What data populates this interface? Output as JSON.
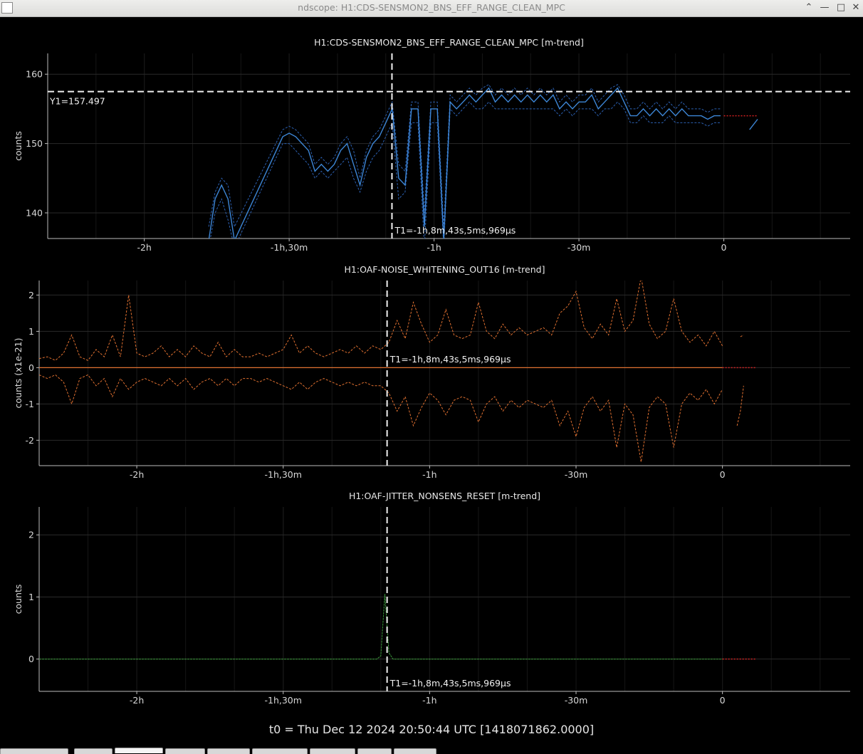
{
  "window": {
    "title": "ndscope: H1:CDS-SENSMON2_BNS_EFF_RANGE_CLEAN_MPC",
    "controls": [
      "chevron-up-icon",
      "minimize-icon",
      "maximize-icon",
      "close-icon"
    ]
  },
  "x_axis": {
    "tick_labels": [
      "-2h",
      "-1h,30m",
      "-1h",
      "-30m",
      "0"
    ],
    "tick_values_s": [
      -7200,
      -5400,
      -3600,
      -1800,
      0
    ],
    "range_s": [
      -8400,
      1570
    ]
  },
  "cursors": {
    "t1_label": "T1=-1h,8m,43s,5ms,969µs",
    "t1_value_s": -4123.006,
    "y1_label": "Y1=157.497",
    "y1_value": 157.497
  },
  "t0_label": "t0 = Thu Dec 12 2024 20:50:44 UTC [1418071862.0000]",
  "chart_data": [
    {
      "type": "line",
      "title": "H1:CDS-SENSMON2_BNS_EFF_RANGE_CLEAN_MPC [m-trend]",
      "ylabel": "counts",
      "ylim": [
        136.3,
        163.0
      ],
      "yticks": [
        140,
        150,
        160
      ],
      "grid": true,
      "color": "#3d86d6",
      "x": [
        -6400,
        -6320,
        -6240,
        -6160,
        -6080,
        -5480,
        -5400,
        -5320,
        -5240,
        -5160,
        -5080,
        -5000,
        -4920,
        -4840,
        -4760,
        -4680,
        -4600,
        -4520,
        -4440,
        -4360,
        -4280,
        -4200,
        -4120,
        -4040,
        -3960,
        -3880,
        -3800,
        -3720,
        -3640,
        -3560,
        -3480,
        -3400,
        -3320,
        -3240,
        -3160,
        -3080,
        -3000,
        -2920,
        -2840,
        -2760,
        -2680,
        -2600,
        -2520,
        -2440,
        -2360,
        -2280,
        -2200,
        -2120,
        -2040,
        -1960,
        -1880,
        -1800,
        -1720,
        -1640,
        -1560,
        -1480,
        -1400,
        -1320,
        -1240,
        -1160,
        -1080,
        -1000,
        -920,
        -840,
        -760,
        -680,
        -600,
        -520,
        -440,
        -360,
        -280,
        -200,
        -120,
        -40
      ],
      "y": [
        136,
        142,
        144,
        142,
        136,
        151,
        151.5,
        151,
        150,
        149,
        146,
        147,
        146,
        147,
        149,
        150,
        147,
        144,
        148,
        150,
        151,
        153,
        155,
        145,
        144,
        155,
        155,
        138,
        155,
        155,
        136,
        156,
        155,
        156,
        157,
        156,
        157,
        158,
        156,
        157,
        156,
        157,
        156,
        157,
        156,
        157,
        156,
        157,
        155,
        156,
        155,
        156,
        156,
        157,
        155,
        156,
        157,
        158,
        156,
        154,
        154,
        155,
        154,
        155,
        154,
        155,
        154,
        155,
        154,
        154,
        154,
        153.5,
        154,
        154
      ],
      "min": [
        135,
        140,
        142,
        139,
        135,
        150,
        150,
        149,
        148,
        147,
        145,
        146,
        145,
        146,
        147,
        148,
        145,
        143,
        146,
        148,
        149,
        151,
        153,
        142,
        143,
        153,
        153,
        135,
        153,
        153,
        135,
        155,
        154,
        155,
        156,
        155,
        155,
        156,
        155,
        155,
        155,
        155,
        155,
        155,
        155,
        155,
        155,
        155,
        154,
        155,
        154,
        155,
        155,
        155,
        154,
        155,
        155,
        156,
        155,
        153,
        153,
        154,
        153,
        153,
        153,
        154,
        153,
        153,
        153,
        153,
        153,
        152.5,
        153,
        153
      ],
      "max": [
        138,
        143,
        145,
        144,
        138,
        152,
        152.5,
        152,
        151,
        150,
        147,
        148,
        147,
        148,
        150,
        151,
        149,
        145,
        149,
        151,
        152,
        154,
        156,
        147,
        146,
        156,
        156,
        140,
        156,
        156,
        138,
        157,
        156,
        157,
        158,
        157,
        158,
        158.5,
        157,
        158,
        157,
        158,
        157,
        158,
        157,
        158,
        157,
        158,
        156,
        157,
        156,
        157,
        157,
        158,
        156,
        157,
        158,
        158.5,
        157,
        155,
        155,
        156,
        155,
        156,
        155,
        156,
        155,
        156,
        155,
        155,
        155,
        154.5,
        155,
        155
      ],
      "gap_after_s": -40,
      "tail_x": [
        80,
        200,
        320,
        420
      ],
      "tail_y": [
        154,
        154,
        152,
        153.5
      ]
    },
    {
      "type": "line",
      "title": "H1:OAF-NOISE_WHITENING_OUT16 [m-trend]",
      "ylabel": "counts (x1e-21)",
      "ylim": [
        -2.7,
        2.4
      ],
      "yticks": [
        -2,
        -1,
        0,
        1,
        2
      ],
      "grid": true,
      "color": "#e07030",
      "mean": 0,
      "x": [
        -8400,
        -8300,
        -8200,
        -8100,
        -8000,
        -7900,
        -7800,
        -7700,
        -7600,
        -7500,
        -7400,
        -7300,
        -7200,
        -7100,
        -7000,
        -6900,
        -6800,
        -6700,
        -6600,
        -6500,
        -6400,
        -6300,
        -6200,
        -6100,
        -6000,
        -5900,
        -5800,
        -5700,
        -5600,
        -5500,
        -5400,
        -5300,
        -5200,
        -5100,
        -5000,
        -4900,
        -4800,
        -4700,
        -4600,
        -4500,
        -4400,
        -4300,
        -4200,
        -4100,
        -4000,
        -3900,
        -3800,
        -3700,
        -3600,
        -3500,
        -3400,
        -3300,
        -3200,
        -3100,
        -3000,
        -2900,
        -2800,
        -2700,
        -2600,
        -2500,
        -2400,
        -2300,
        -2200,
        -2100,
        -2000,
        -1900,
        -1800,
        -1700,
        -1600,
        -1500,
        -1400,
        -1300,
        -1200,
        -1100,
        -1000,
        -900,
        -800,
        -700,
        -600,
        -500,
        -400,
        -300,
        -200,
        -100,
        0
      ],
      "upper": [
        0.25,
        0.3,
        0.2,
        0.4,
        0.9,
        0.3,
        0.2,
        0.5,
        0.3,
        0.9,
        0.3,
        2.0,
        0.4,
        0.3,
        0.4,
        0.6,
        0.3,
        0.5,
        0.3,
        0.6,
        0.4,
        0.3,
        0.7,
        0.3,
        0.5,
        0.3,
        0.3,
        0.4,
        0.3,
        0.4,
        0.5,
        0.9,
        0.4,
        0.6,
        0.4,
        0.3,
        0.4,
        0.5,
        0.4,
        0.6,
        0.4,
        0.6,
        0.5,
        0.7,
        1.3,
        0.8,
        1.8,
        1.2,
        0.7,
        0.9,
        1.6,
        0.9,
        0.8,
        0.9,
        1.8,
        1.0,
        0.8,
        1.2,
        0.9,
        1.1,
        0.9,
        1.0,
        1.1,
        0.9,
        1.5,
        1.7,
        2.1,
        1.1,
        0.8,
        1.2,
        0.9,
        1.9,
        1.0,
        1.3,
        2.5,
        1.2,
        0.8,
        1.0,
        1.9,
        1.0,
        0.7,
        0.9,
        0.6,
        1.0,
        0.6
      ],
      "lower": [
        -0.2,
        -0.3,
        -0.2,
        -0.4,
        -1.0,
        -0.3,
        -0.2,
        -0.5,
        -0.3,
        -0.8,
        -0.3,
        -0.6,
        -0.4,
        -0.3,
        -0.4,
        -0.5,
        -0.3,
        -0.5,
        -0.3,
        -0.6,
        -0.4,
        -0.3,
        -0.5,
        -0.3,
        -0.5,
        -0.3,
        -0.3,
        -0.4,
        -0.3,
        -0.4,
        -0.5,
        -0.6,
        -0.4,
        -0.6,
        -0.4,
        -0.3,
        -0.4,
        -0.5,
        -0.4,
        -0.5,
        -0.4,
        -0.5,
        -0.5,
        -0.7,
        -1.2,
        -0.8,
        -1.6,
        -1.1,
        -0.7,
        -0.9,
        -1.3,
        -0.9,
        -0.8,
        -0.9,
        -1.5,
        -1.0,
        -0.8,
        -1.2,
        -0.9,
        -1.1,
        -0.9,
        -1.0,
        -1.1,
        -0.9,
        -1.6,
        -1.2,
        -1.9,
        -1.1,
        -0.8,
        -1.2,
        -0.9,
        -2.2,
        -1.0,
        -1.3,
        -2.6,
        -1.1,
        -0.8,
        -1.0,
        -2.2,
        -1.0,
        -0.7,
        -0.9,
        -0.6,
        -1.0,
        -0.6
      ],
      "tail_x": [
        180,
        220,
        260
      ],
      "tail_upper": [
        0.9,
        0.85,
        0.9
      ],
      "tail_lower": [
        -1.6,
        -1.2,
        -0.5
      ]
    },
    {
      "type": "line",
      "title": "H1:OAF-JITTER_NONSENS_RESET [m-trend]",
      "ylabel": "counts",
      "ylim": [
        -0.52,
        2.45
      ],
      "yticks": [
        0,
        1,
        2
      ],
      "grid": true,
      "color": "#3a9a3a",
      "x": [
        -8400,
        -4300,
        -4250,
        -4200,
        -4150,
        -4100,
        -4050,
        0
      ],
      "y": [
        0,
        0,
        0,
        0.05,
        1.05,
        0.1,
        0,
        0
      ]
    }
  ],
  "tabs": [
    {
      "width": 96,
      "active": false
    },
    {
      "width": 54,
      "active": false
    },
    {
      "width": 68,
      "active": true
    },
    {
      "width": 56,
      "active": false
    },
    {
      "width": 60,
      "active": false
    },
    {
      "width": 78,
      "active": false
    },
    {
      "width": 64,
      "active": false
    },
    {
      "width": 48,
      "active": false
    },
    {
      "width": 60,
      "active": false
    }
  ]
}
